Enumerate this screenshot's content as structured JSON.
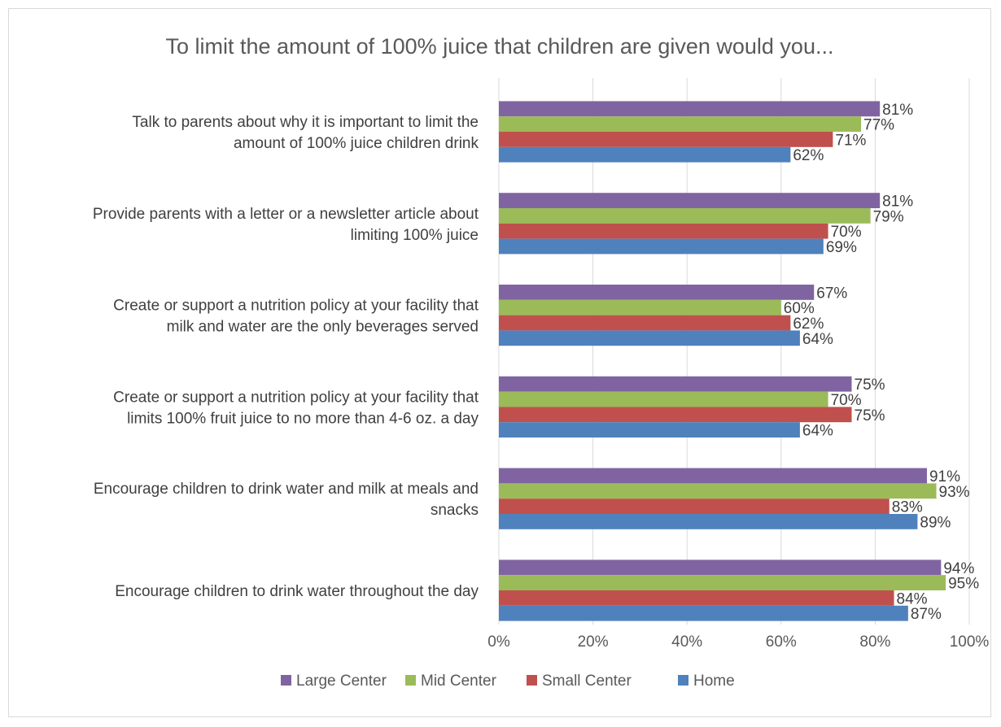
{
  "chart_data": {
    "type": "bar",
    "orientation": "horizontal",
    "title": "To limit the amount of 100% juice that children are given would you...",
    "categories": [
      [
        "Talk to parents about why it is important to limit the",
        "amount of 100% juice children drink"
      ],
      [
        "Provide parents with a letter or a newsletter article about",
        "limiting 100% juice"
      ],
      [
        "Create or support a nutrition policy at your facility that",
        "milk and water are the only beverages served"
      ],
      [
        "Create or support a nutrition policy at your facility that",
        "limits 100% fruit juice to no more than 4-6 oz. a day"
      ],
      [
        "Encourage children to drink water and milk at meals and",
        "snacks"
      ],
      [
        "Encourage children to drink water throughout the day"
      ]
    ],
    "series": [
      {
        "name": "Large Center",
        "color": "#8064a2",
        "values": [
          81,
          81,
          67,
          75,
          91,
          94
        ],
        "labels": [
          "81%",
          "81%",
          "67%",
          "75%",
          "91%",
          "94%"
        ]
      },
      {
        "name": "Mid Center",
        "color": "#9bbb59",
        "values": [
          77,
          79,
          60,
          70,
          93,
          95
        ],
        "labels": [
          "77%",
          "79%",
          "60%",
          "70%",
          "93%",
          "95%"
        ]
      },
      {
        "name": "Small Center",
        "color": "#c0504d",
        "values": [
          71,
          70,
          62,
          75,
          83,
          84
        ],
        "labels": [
          "71%",
          "70%",
          "62%",
          "75%",
          "83%",
          "84%"
        ]
      },
      {
        "name": "Home",
        "color": "#4f81bd",
        "values": [
          62,
          69,
          64,
          64,
          89,
          87
        ],
        "labels": [
          "62%",
          "69%",
          "64%",
          "64%",
          "89%",
          "87%"
        ]
      }
    ],
    "xlim": [
      0,
      100
    ],
    "xticks": [
      0,
      20,
      40,
      60,
      80,
      100
    ],
    "xtick_labels": [
      "0%",
      "20%",
      "40%",
      "60%",
      "80%",
      "100%"
    ],
    "xlabel": "",
    "ylabel": "",
    "grid": "vertical",
    "legend": "bottom"
  }
}
